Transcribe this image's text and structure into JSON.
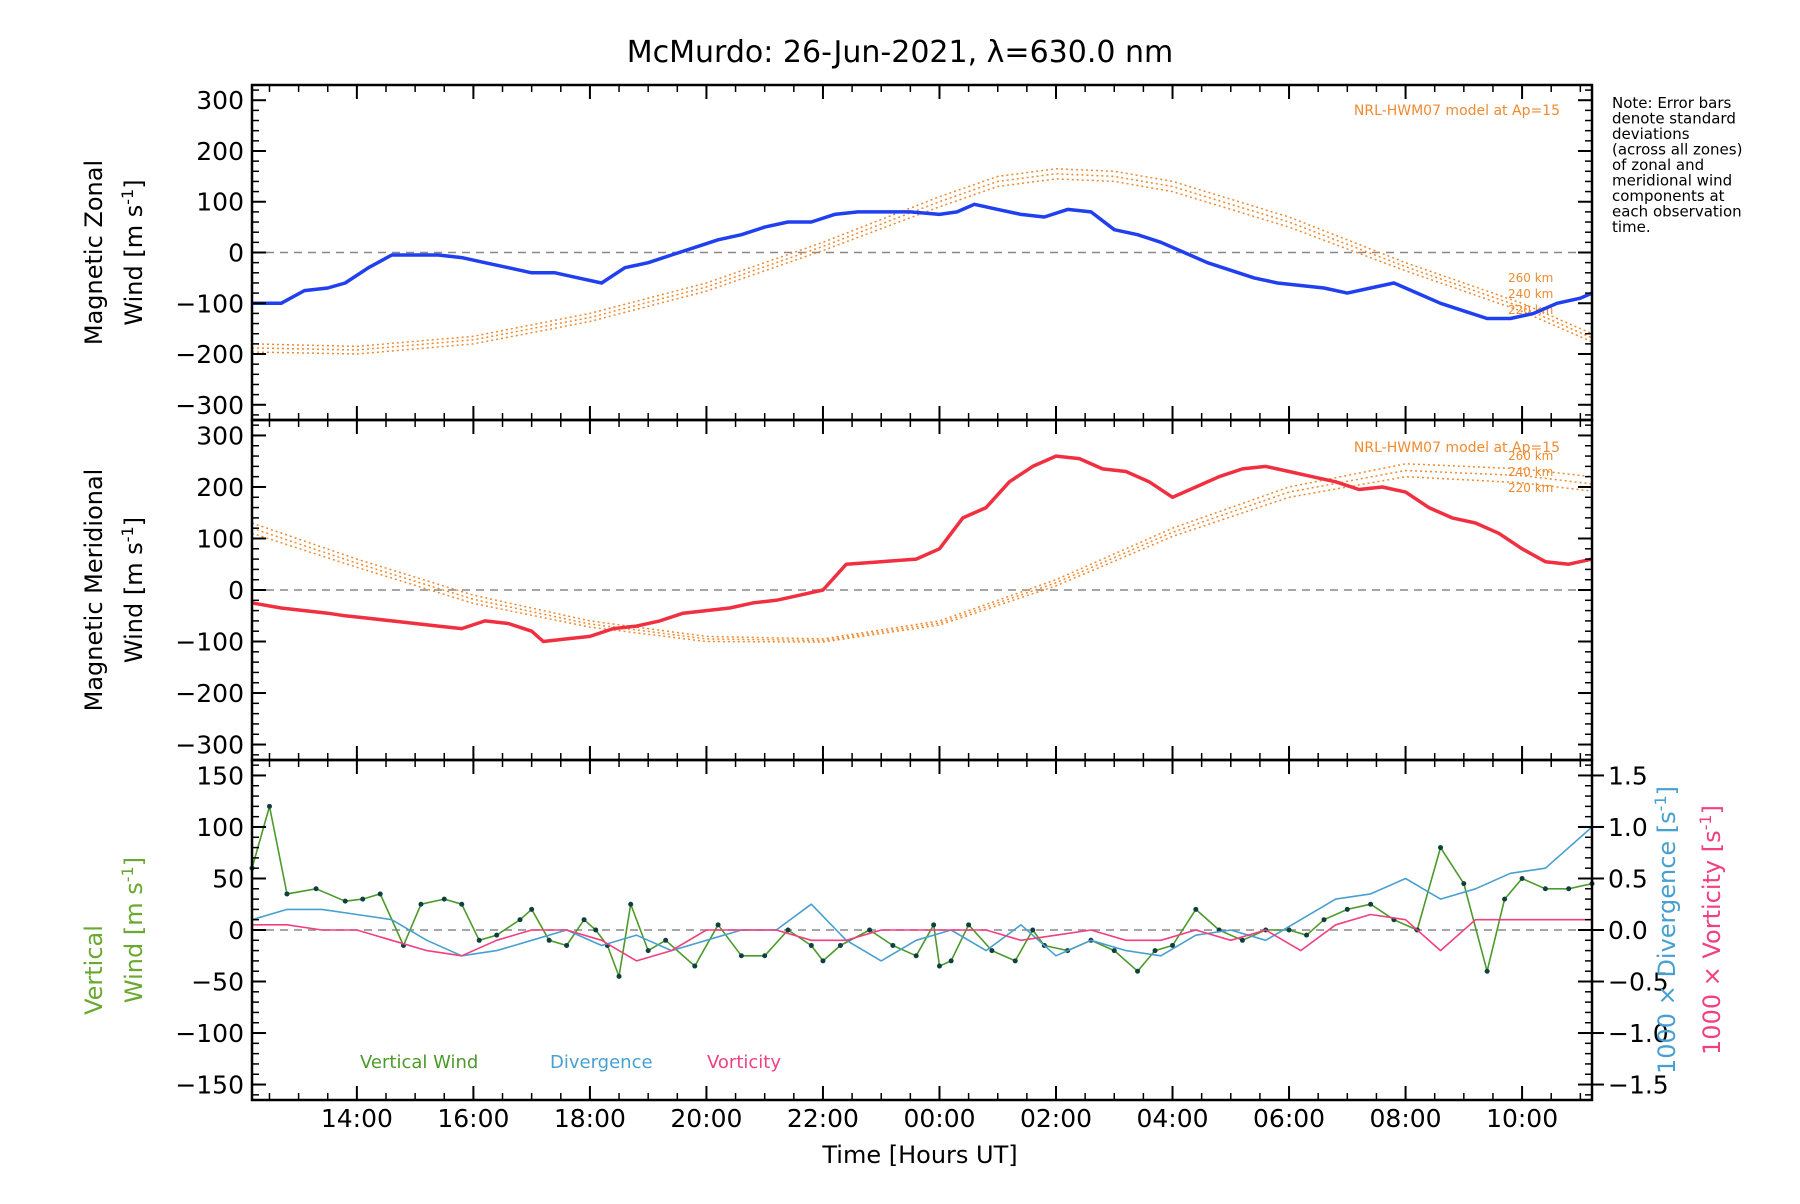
{
  "chart_data": {
    "title": "McMurdo: 26-Jun-2021, λ=630.0 nm",
    "note_lines": [
      "Note: Error bars",
      "denote standard",
      "deviations",
      "(across all zones)",
      "of zonal and",
      "meridional wind",
      "components at",
      "each observation",
      "time."
    ],
    "x_axis": {
      "label": "Time [Hours UT]",
      "range_hours": [
        12.2,
        35.2
      ],
      "ticks": [
        {
          "hours": 14,
          "label": "14:00"
        },
        {
          "hours": 16,
          "label": "16:00"
        },
        {
          "hours": 18,
          "label": "18:00"
        },
        {
          "hours": 20,
          "label": "20:00"
        },
        {
          "hours": 22,
          "label": "22:00"
        },
        {
          "hours": 24,
          "label": "00:00"
        },
        {
          "hours": 26,
          "label": "02:00"
        },
        {
          "hours": 28,
          "label": "04:00"
        },
        {
          "hours": 30,
          "label": "06:00"
        },
        {
          "hours": 32,
          "label": "08:00"
        },
        {
          "hours": 34,
          "label": "10:00"
        }
      ]
    },
    "model_label": "NRL-HWM07 model at Ap=15",
    "altitude_labels": [
      "260 km",
      "240 km",
      "220 km"
    ],
    "panels": [
      {
        "type": "line",
        "name": "zonal",
        "ylabel_line1": "Magnetic Zonal",
        "ylabel_line2": "Wind [m s",
        "ylabel_exp": "-1",
        "ylabel_close": "]",
        "ylim": [
          -330,
          330
        ],
        "yticks": [
          300,
          200,
          100,
          0,
          -100,
          -200,
          -300
        ],
        "ytick_labels": [
          "300",
          "200",
          "100",
          "0",
          "−100",
          "−200",
          "−300"
        ],
        "series": [
          {
            "name": "Magnetic Zonal Wind",
            "color": "#2040f0",
            "x": [
              12.2,
              12.7,
              13.1,
              13.5,
              13.8,
              14.2,
              14.6,
              15.0,
              15.4,
              15.8,
              16.2,
              16.6,
              17.0,
              17.4,
              17.8,
              18.2,
              18.6,
              19.0,
              19.4,
              19.8,
              20.2,
              20.6,
              21.0,
              21.4,
              21.8,
              22.2,
              22.6,
              23.0,
              23.5,
              24.0,
              24.3,
              24.6,
              25.0,
              25.4,
              25.8,
              26.2,
              26.6,
              27.0,
              27.4,
              27.8,
              28.2,
              28.6,
              29.0,
              29.4,
              29.8,
              30.2,
              30.6,
              31.0,
              31.4,
              31.8,
              32.2,
              32.6,
              33.0,
              33.4,
              33.8,
              34.2,
              34.6,
              35.0,
              35.2
            ],
            "values": [
              -100,
              -100,
              -75,
              -70,
              -60,
              -30,
              -5,
              -5,
              -5,
              -10,
              -20,
              -30,
              -40,
              -40,
              -50,
              -60,
              -30,
              -20,
              -5,
              10,
              25,
              35,
              50,
              60,
              60,
              75,
              80,
              80,
              80,
              75,
              80,
              95,
              85,
              75,
              70,
              85,
              80,
              45,
              35,
              20,
              0,
              -20,
              -35,
              -50,
              -60,
              -65,
              -70,
              -80,
              -70,
              -60,
              -80,
              -100,
              -115,
              -130,
              -130,
              -120,
              -100,
              -90,
              -80
            ]
          }
        ],
        "model_curves": [
          {
            "altitude": "260 km",
            "x": [
              12.2,
              14.0,
              16.0,
              18.0,
              20.0,
              22.0,
              24.0,
              25.0,
              26.0,
              27.0,
              28.0,
              30.0,
              32.0,
              34.0,
              35.2
            ],
            "values": [
              -180,
              -185,
              -165,
              -120,
              -60,
              20,
              110,
              150,
              165,
              160,
              140,
              70,
              -20,
              -100,
              -160
            ]
          },
          {
            "altitude": "240 km",
            "x": [
              12.2,
              14.0,
              16.0,
              18.0,
              20.0,
              22.0,
              24.0,
              25.0,
              26.0,
              27.0,
              28.0,
              30.0,
              32.0,
              34.0,
              35.2
            ],
            "values": [
              -188,
              -192,
              -172,
              -128,
              -68,
              12,
              100,
              140,
              155,
              150,
              130,
              60,
              -28,
              -108,
              -168
            ]
          },
          {
            "altitude": "220 km",
            "x": [
              12.2,
              14.0,
              16.0,
              18.0,
              20.0,
              22.0,
              24.0,
              25.0,
              26.0,
              27.0,
              28.0,
              30.0,
              32.0,
              34.0,
              35.2
            ],
            "values": [
              -196,
              -200,
              -180,
              -136,
              -76,
              4,
              90,
              130,
              145,
              140,
              120,
              50,
              -36,
              -116,
              -176
            ]
          }
        ]
      },
      {
        "type": "line",
        "name": "meridional",
        "ylabel_line1": "Magnetic Meridional",
        "ylabel_line2": "Wind [m s",
        "ylabel_exp": "-1",
        "ylabel_close": "]",
        "ylim": [
          -330,
          330
        ],
        "yticks": [
          300,
          200,
          100,
          0,
          -100,
          -200,
          -300
        ],
        "ytick_labels": [
          "300",
          "200",
          "100",
          "0",
          "−100",
          "−200",
          "−300"
        ],
        "series": [
          {
            "name": "Magnetic Meridional Wind",
            "color": "#f03040",
            "x": [
              12.2,
              12.7,
              13.1,
              13.5,
              13.8,
              14.2,
              14.6,
              15.0,
              15.4,
              15.8,
              16.2,
              16.6,
              17.0,
              17.2,
              17.6,
              18.0,
              18.4,
              18.8,
              19.2,
              19.6,
              20.0,
              20.4,
              20.8,
              21.2,
              21.6,
              22.0,
              22.4,
              23.0,
              23.6,
              24.0,
              24.4,
              24.8,
              25.2,
              25.6,
              26.0,
              26.4,
              26.8,
              27.2,
              27.6,
              28.0,
              28.4,
              28.8,
              29.2,
              29.6,
              30.0,
              30.4,
              30.8,
              31.2,
              31.6,
              32.0,
              32.4,
              32.8,
              33.2,
              33.6,
              34.0,
              34.4,
              34.8,
              35.2
            ],
            "values": [
              -25,
              -35,
              -40,
              -45,
              -50,
              -55,
              -60,
              -65,
              -70,
              -75,
              -60,
              -65,
              -80,
              -100,
              -95,
              -90,
              -75,
              -70,
              -60,
              -45,
              -40,
              -35,
              -25,
              -20,
              -10,
              0,
              50,
              55,
              60,
              80,
              140,
              160,
              210,
              240,
              260,
              255,
              235,
              230,
              210,
              180,
              200,
              220,
              235,
              240,
              230,
              220,
              210,
              195,
              200,
              190,
              160,
              140,
              130,
              110,
              80,
              55,
              50,
              60
            ]
          }
        ],
        "model_curves": [
          {
            "altitude": "260 km",
            "x": [
              12.2,
              14.0,
              16.0,
              18.0,
              20.0,
              22.0,
              24.0,
              26.0,
              28.0,
              30.0,
              32.0,
              34.0,
              35.2
            ],
            "values": [
              130,
              60,
              -10,
              -60,
              -90,
              -95,
              -60,
              20,
              120,
              200,
              245,
              235,
              220
            ]
          },
          {
            "altitude": "240 km",
            "x": [
              12.2,
              14.0,
              16.0,
              18.0,
              20.0,
              22.0,
              24.0,
              26.0,
              28.0,
              30.0,
              32.0,
              34.0,
              35.2
            ],
            "values": [
              120,
              52,
              -18,
              -66,
              -95,
              -98,
              -64,
              14,
              112,
              190,
              232,
              222,
              206
            ]
          },
          {
            "altitude": "220 km",
            "x": [
              12.2,
              14.0,
              16.0,
              18.0,
              20.0,
              22.0,
              24.0,
              26.0,
              28.0,
              30.0,
              32.0,
              34.0,
              35.2
            ],
            "values": [
              110,
              44,
              -26,
              -72,
              -100,
              -101,
              -68,
              8,
              104,
              180,
              220,
              208,
              192
            ]
          }
        ]
      },
      {
        "type": "line",
        "name": "vertical",
        "ylabel_left_line1": "Vertical",
        "ylabel_left_line2": "Wind [m s",
        "ylabel_left_exp": "-1",
        "ylabel_left_close": "]",
        "ylabel_right1": "1000 × Divergence [s",
        "ylabel_right2": "1000 × Vorticity [s",
        "ylabel_right_exp": "-1",
        "ylabel_right_close": "]",
        "ylim": [
          -165,
          165
        ],
        "yticks": [
          150,
          100,
          50,
          0,
          -50,
          -100,
          -150
        ],
        "ytick_labels": [
          "150",
          "100",
          "50",
          "0",
          "−50",
          "−100",
          "−150"
        ],
        "right_ylim": [
          -1.65,
          1.65
        ],
        "right_yticks": [
          1.5,
          1.0,
          0.5,
          0.0,
          -0.5,
          -1.0,
          -1.5
        ],
        "right_ytick_labels": [
          "1.5",
          "1.0",
          "0.5",
          "0.0",
          "−0.5",
          "−1.0",
          "−1.5"
        ],
        "legend": [
          "Vertical Wind",
          "Divergence",
          "Vorticity"
        ],
        "series": [
          {
            "name": "Vertical Wind",
            "color": "#4c9a2a",
            "x": [
              12.2,
              12.5,
              12.8,
              13.3,
              13.8,
              14.1,
              14.4,
              14.8,
              15.1,
              15.5,
              15.8,
              16.1,
              16.4,
              16.8,
              17.0,
              17.3,
              17.6,
              17.9,
              18.1,
              18.3,
              18.5,
              18.7,
              19.0,
              19.3,
              19.8,
              20.2,
              20.6,
              21.0,
              21.4,
              21.8,
              22.0,
              22.3,
              22.8,
              23.2,
              23.6,
              23.9,
              24.0,
              24.2,
              24.5,
              24.9,
              25.3,
              25.6,
              25.8,
              26.2,
              26.6,
              27.0,
              27.4,
              27.7,
              28.0,
              28.4,
              28.8,
              29.2,
              29.6,
              30.0,
              30.3,
              30.6,
              31.0,
              31.4,
              31.8,
              32.2,
              32.6,
              33.0,
              33.4,
              33.7,
              34.0,
              34.4,
              34.8,
              35.2
            ],
            "values": [
              60,
              120,
              35,
              40,
              28,
              30,
              35,
              -15,
              25,
              30,
              25,
              -10,
              -5,
              10,
              20,
              -10,
              -15,
              10,
              0,
              -15,
              -45,
              25,
              -20,
              -10,
              -35,
              5,
              -25,
              -25,
              0,
              -15,
              -30,
              -15,
              0,
              -15,
              -25,
              5,
              -35,
              -30,
              5,
              -20,
              -30,
              0,
              -15,
              -20,
              -10,
              -20,
              -40,
              -20,
              -15,
              20,
              0,
              -10,
              0,
              0,
              -5,
              10,
              20,
              25,
              10,
              0,
              80,
              45,
              -40,
              30,
              50,
              40,
              40,
              45
            ]
          },
          {
            "name": "Divergence",
            "color": "#48a0d0",
            "axis": "right",
            "x": [
              12.2,
              12.8,
              13.4,
              14.0,
              14.6,
              15.2,
              15.8,
              16.4,
              17.0,
              17.6,
              18.2,
              18.8,
              19.4,
              20.0,
              20.6,
              21.2,
              21.8,
              22.4,
              23.0,
              23.6,
              24.2,
              24.8,
              25.4,
              26.0,
              26.6,
              27.2,
              27.8,
              28.4,
              29.0,
              29.6,
              30.2,
              30.8,
              31.4,
              32.0,
              32.6,
              33.2,
              33.8,
              34.4,
              35.2
            ],
            "values": [
              0.1,
              0.2,
              0.2,
              0.15,
              0.1,
              -0.1,
              -0.25,
              -0.2,
              -0.1,
              0.0,
              -0.15,
              -0.05,
              -0.2,
              -0.1,
              0.0,
              0.0,
              0.25,
              -0.1,
              -0.3,
              -0.1,
              0.0,
              -0.2,
              0.05,
              -0.25,
              -0.1,
              -0.2,
              -0.25,
              -0.05,
              0.0,
              -0.1,
              0.1,
              0.3,
              0.35,
              0.5,
              0.3,
              0.4,
              0.55,
              0.6,
              1.0
            ]
          },
          {
            "name": "Vorticity",
            "color": "#f04080",
            "axis": "right",
            "x": [
              12.2,
              12.8,
              13.4,
              14.0,
              14.6,
              15.2,
              15.8,
              16.4,
              17.0,
              17.6,
              18.2,
              18.8,
              19.4,
              20.0,
              20.6,
              21.2,
              21.8,
              22.4,
              23.0,
              23.6,
              24.2,
              24.8,
              25.4,
              26.0,
              26.6,
              27.2,
              27.8,
              28.4,
              29.0,
              29.6,
              30.2,
              30.8,
              31.4,
              32.0,
              32.6,
              33.2,
              33.8,
              34.4,
              35.2
            ],
            "values": [
              0.05,
              0.05,
              0.0,
              0.0,
              -0.1,
              -0.2,
              -0.25,
              -0.1,
              0.0,
              0.0,
              -0.1,
              -0.3,
              -0.2,
              0.0,
              0.0,
              0.0,
              -0.1,
              -0.1,
              0.0,
              0.0,
              0.0,
              0.0,
              -0.1,
              -0.05,
              0.0,
              -0.1,
              -0.1,
              0.0,
              -0.1,
              0.0,
              -0.2,
              0.05,
              0.15,
              0.1,
              -0.2,
              0.1,
              0.1,
              0.1,
              0.1
            ]
          }
        ]
      }
    ]
  }
}
